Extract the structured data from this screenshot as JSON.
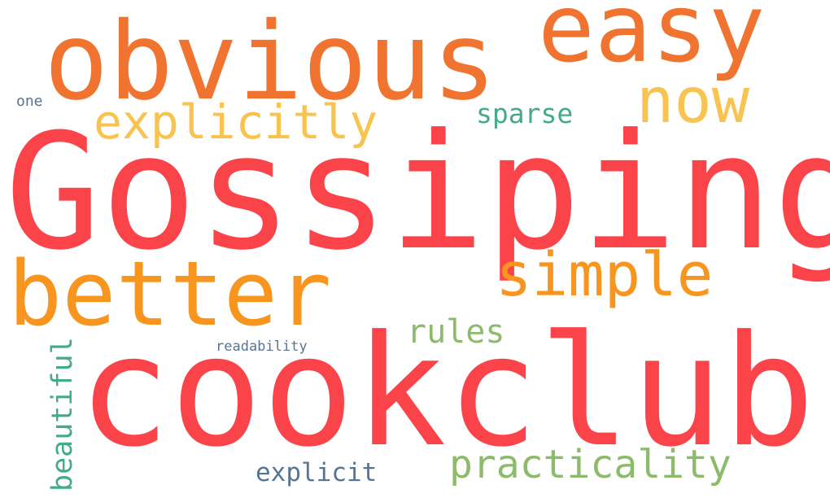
{
  "words": {
    "gossiping": {
      "text": "Gossiping",
      "color": "#fb434a"
    },
    "cookclub": {
      "text": "cookclub",
      "color": "#fb434a"
    },
    "obvious": {
      "text": "obvious",
      "color": "#f07430"
    },
    "easy": {
      "text": "easy",
      "color": "#f07430"
    },
    "better": {
      "text": "better",
      "color": "#f7951f"
    },
    "now": {
      "text": "now",
      "color": "#f9c352"
    },
    "simple": {
      "text": "simple",
      "color": "#f7951f"
    },
    "explicitly": {
      "text": "explicitly",
      "color": "#f9c352"
    },
    "practicality": {
      "text": "practicality",
      "color": "#8dbb6c"
    },
    "rules": {
      "text": "rules",
      "color": "#8dbb6c"
    },
    "sparse": {
      "text": "sparse",
      "color": "#43aa8b"
    },
    "explicit": {
      "text": "explicit",
      "color": "#577590"
    },
    "readability": {
      "text": "readability",
      "color": "#577590"
    },
    "one": {
      "text": "one",
      "color": "#577590"
    },
    "beautiful": {
      "text": "beautiful",
      "color": "#43aa8b",
      "orientation": "vertical"
    }
  }
}
